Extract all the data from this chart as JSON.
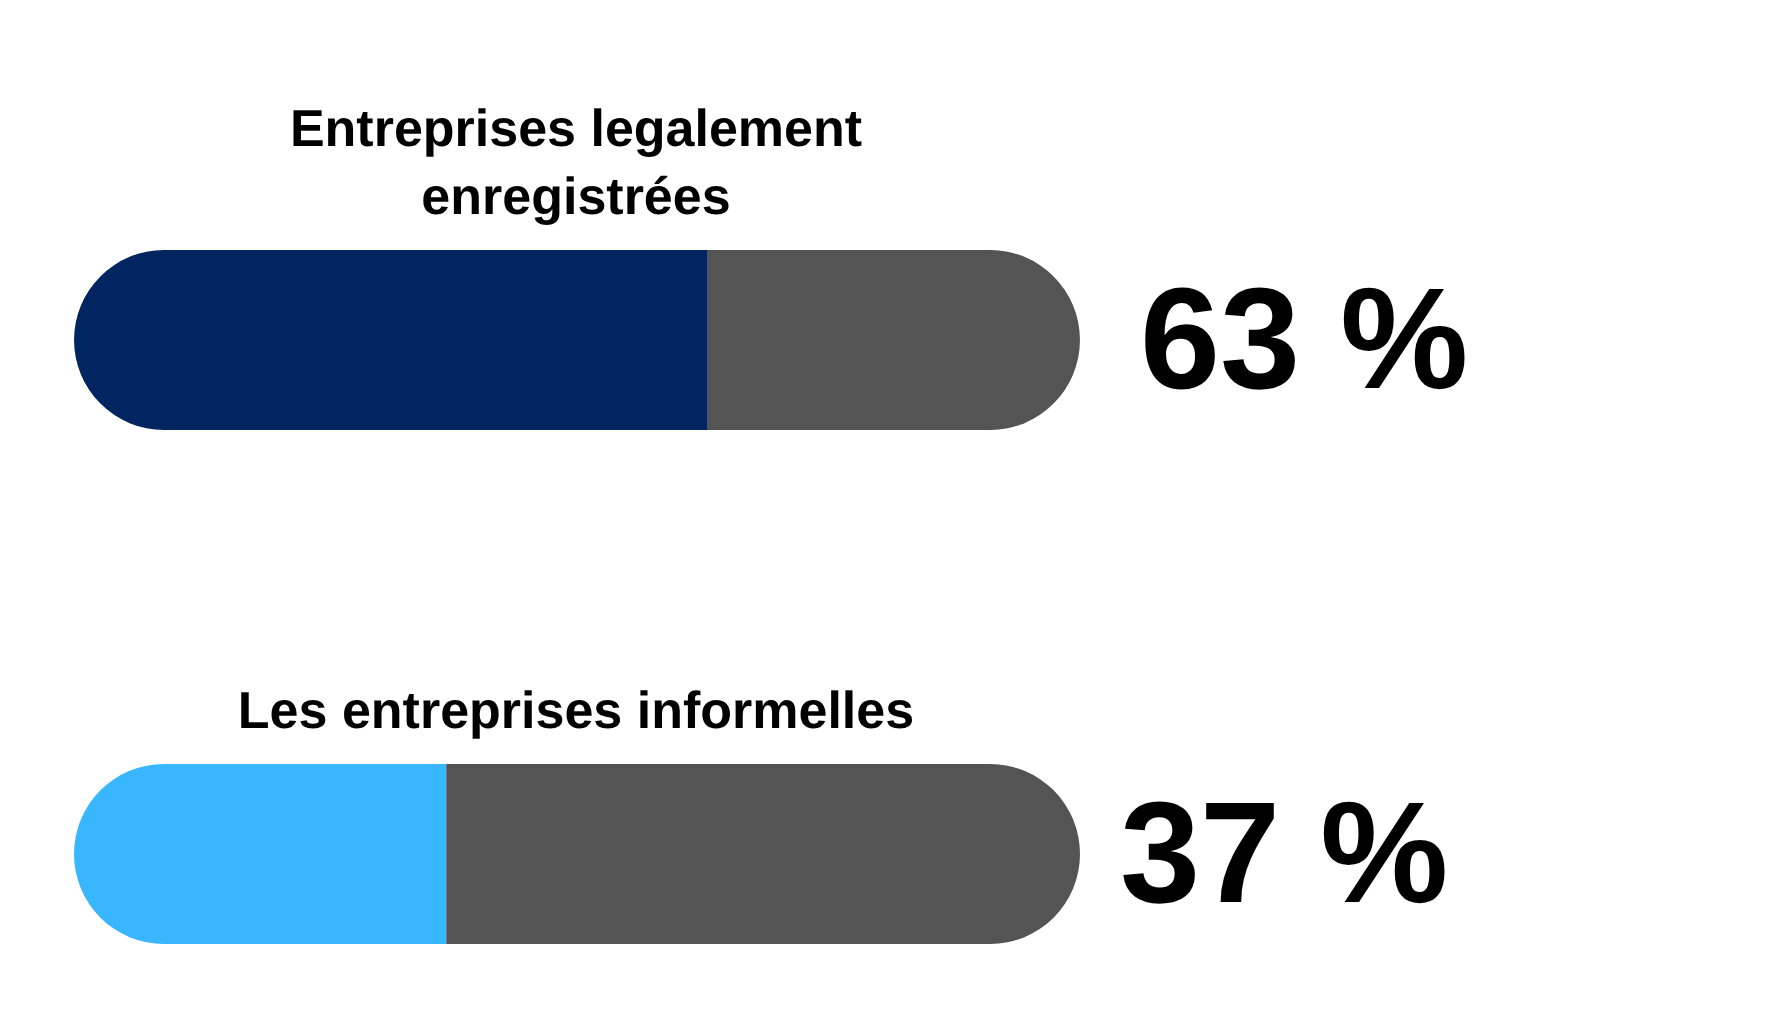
{
  "chart_data": {
    "type": "bar",
    "orientation": "horizontal",
    "stacked": true,
    "categories": [
      "Entreprises legalement enregistrées",
      "Les entreprises informelles"
    ],
    "series": [
      {
        "colors": [
          "#012561",
          "#38b6ff"
        ],
        "values": [
          63,
          37
        ],
        "value_labels": [
          "63 %",
          "37 %"
        ]
      },
      {
        "color": "#545454",
        "values": [
          37,
          63
        ]
      }
    ],
    "xlim": [
      0,
      100
    ]
  }
}
